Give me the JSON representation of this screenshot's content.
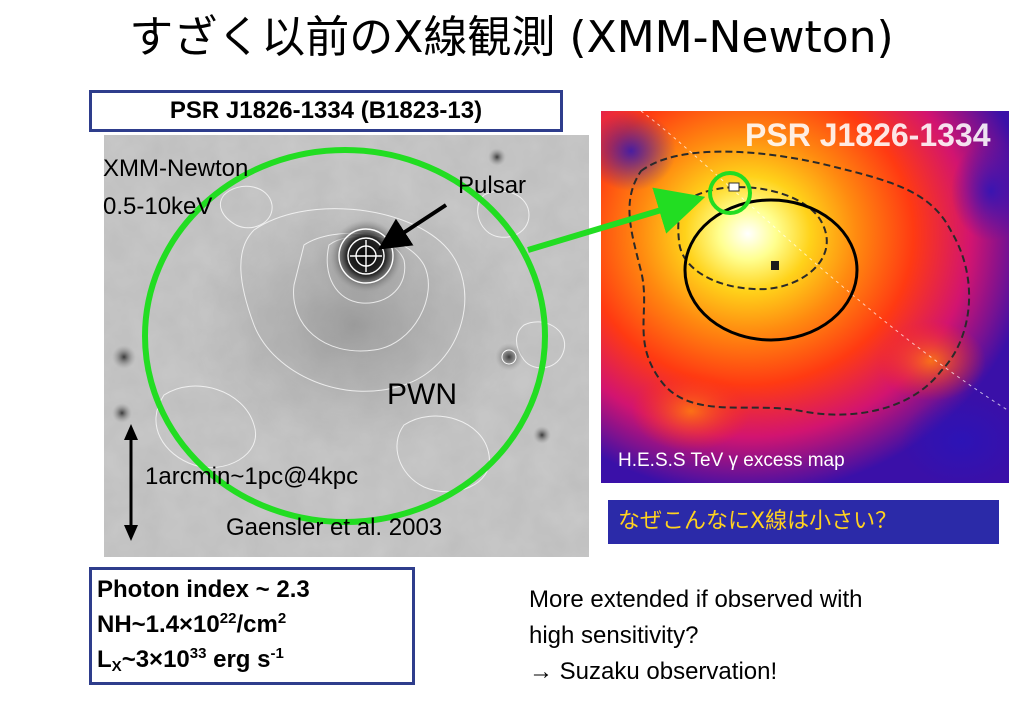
{
  "title": "すざく以前のX線観測 (XMM-Newton)",
  "psr_label": "PSR J1826-1334 (B1823-13)",
  "xmm_image": {
    "instrument": "XMM-Newton",
    "band": "0.5-10keV",
    "pulsar_label": "Pulsar",
    "pwn_label": "PWN",
    "scale_label": "1arcmin~1pc@4kpc",
    "citation": "Gaensler et al. 2003"
  },
  "hess_image": {
    "source_name": "PSR J1826-1334",
    "caption": "H.E.S.S  TeV γ excess map"
  },
  "question": "なぜこんなにX線は小さい？",
  "params": {
    "photon_index_label": "Photon index ~ 2.3",
    "nh_prefix": "NH~1.4×10",
    "nh_exp": "22",
    "nh_unit": "/cm",
    "nh_unit_exp": "2",
    "lx_prefix": "L",
    "lx_sub": "X",
    "lx_mid": "~3×10",
    "lx_exp": "33",
    "lx_unit": " erg s",
    "lx_unit_exp": "-1"
  },
  "note": {
    "line1": "More extended if observed with",
    "line2": "high sensitivity?",
    "line3": "→ Suzaku observation!"
  },
  "colors": {
    "green": "#22dd22",
    "box_border": "#2e3d8c",
    "question_bg": "#2b2aa8",
    "question_text": "#ffd21f"
  }
}
